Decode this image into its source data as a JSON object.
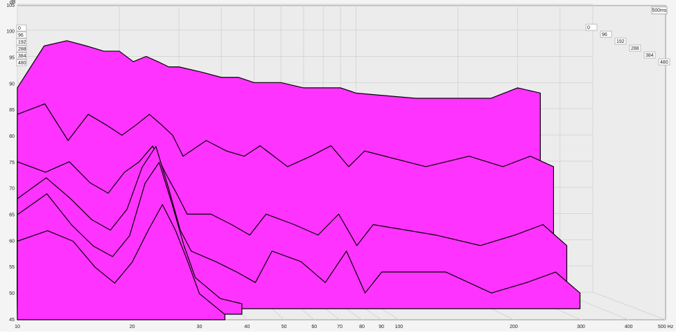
{
  "chart_data": {
    "type": "waterfall",
    "ylabel": "dB",
    "time_label": "500ms",
    "x": [
      10,
      12,
      14,
      16,
      18,
      20,
      22,
      24,
      26,
      28,
      30,
      35,
      40,
      45,
      50,
      60,
      70,
      80,
      90,
      100,
      150,
      200,
      250,
      300,
      350
    ],
    "xlim": [
      10,
      500
    ],
    "xticks": [
      10,
      20,
      30,
      40,
      50,
      60,
      70,
      80,
      90,
      100,
      200,
      300,
      400,
      {
        "value": 500,
        "label": "500 Hz"
      }
    ],
    "ylim": [
      45,
      105
    ],
    "yticks": [
      45,
      50,
      55,
      60,
      65,
      70,
      75,
      80,
      85,
      90,
      95,
      100,
      105
    ],
    "zlim": [
      0,
      480
    ],
    "zticks": [
      0,
      96,
      192,
      288,
      384,
      480
    ],
    "log_x": true,
    "grid": true,
    "color": "#ff33ff",
    "series": [
      {
        "values": [
          84,
          92,
          93,
          92,
          91,
          91,
          89,
          90,
          89,
          88,
          88,
          87,
          86,
          86,
          85,
          85,
          84,
          84,
          84,
          83,
          82,
          82,
          82,
          84,
          83
        ]
      },
      {
        "values": [
          80,
          82,
          75,
          80,
          78,
          76,
          78,
          80,
          78,
          76,
          72,
          75,
          73,
          72,
          74,
          70,
          72,
          74,
          70,
          73,
          70,
          72,
          70,
          72,
          70
        ]
      },
      {
        "values": [
          72,
          70,
          72,
          68,
          66,
          70,
          72,
          75,
          70,
          66,
          62,
          62,
          60,
          58,
          62,
          60,
          58,
          62,
          56,
          60,
          58,
          56,
          58,
          60,
          56
        ]
      },
      {
        "values": [
          66,
          70,
          66,
          62,
          60,
          64,
          72,
          76,
          68,
          60,
          56,
          54,
          52,
          50,
          56,
          54,
          50,
          56,
          48,
          52,
          52,
          48,
          50,
          52,
          48
        ]
      },
      {
        "values": [
          64,
          68,
          62,
          58,
          56,
          60,
          70,
          74,
          66,
          58,
          52,
          48,
          47,
          null,
          null,
          null,
          null,
          null,
          null,
          null,
          null,
          null,
          null,
          null,
          null
        ]
      },
      {
        "values": [
          60,
          62,
          60,
          55,
          52,
          56,
          62,
          67,
          62,
          56,
          50,
          46,
          null,
          null,
          null,
          null,
          null,
          null,
          null,
          null,
          null,
          null,
          null,
          null,
          null
        ]
      }
    ]
  }
}
